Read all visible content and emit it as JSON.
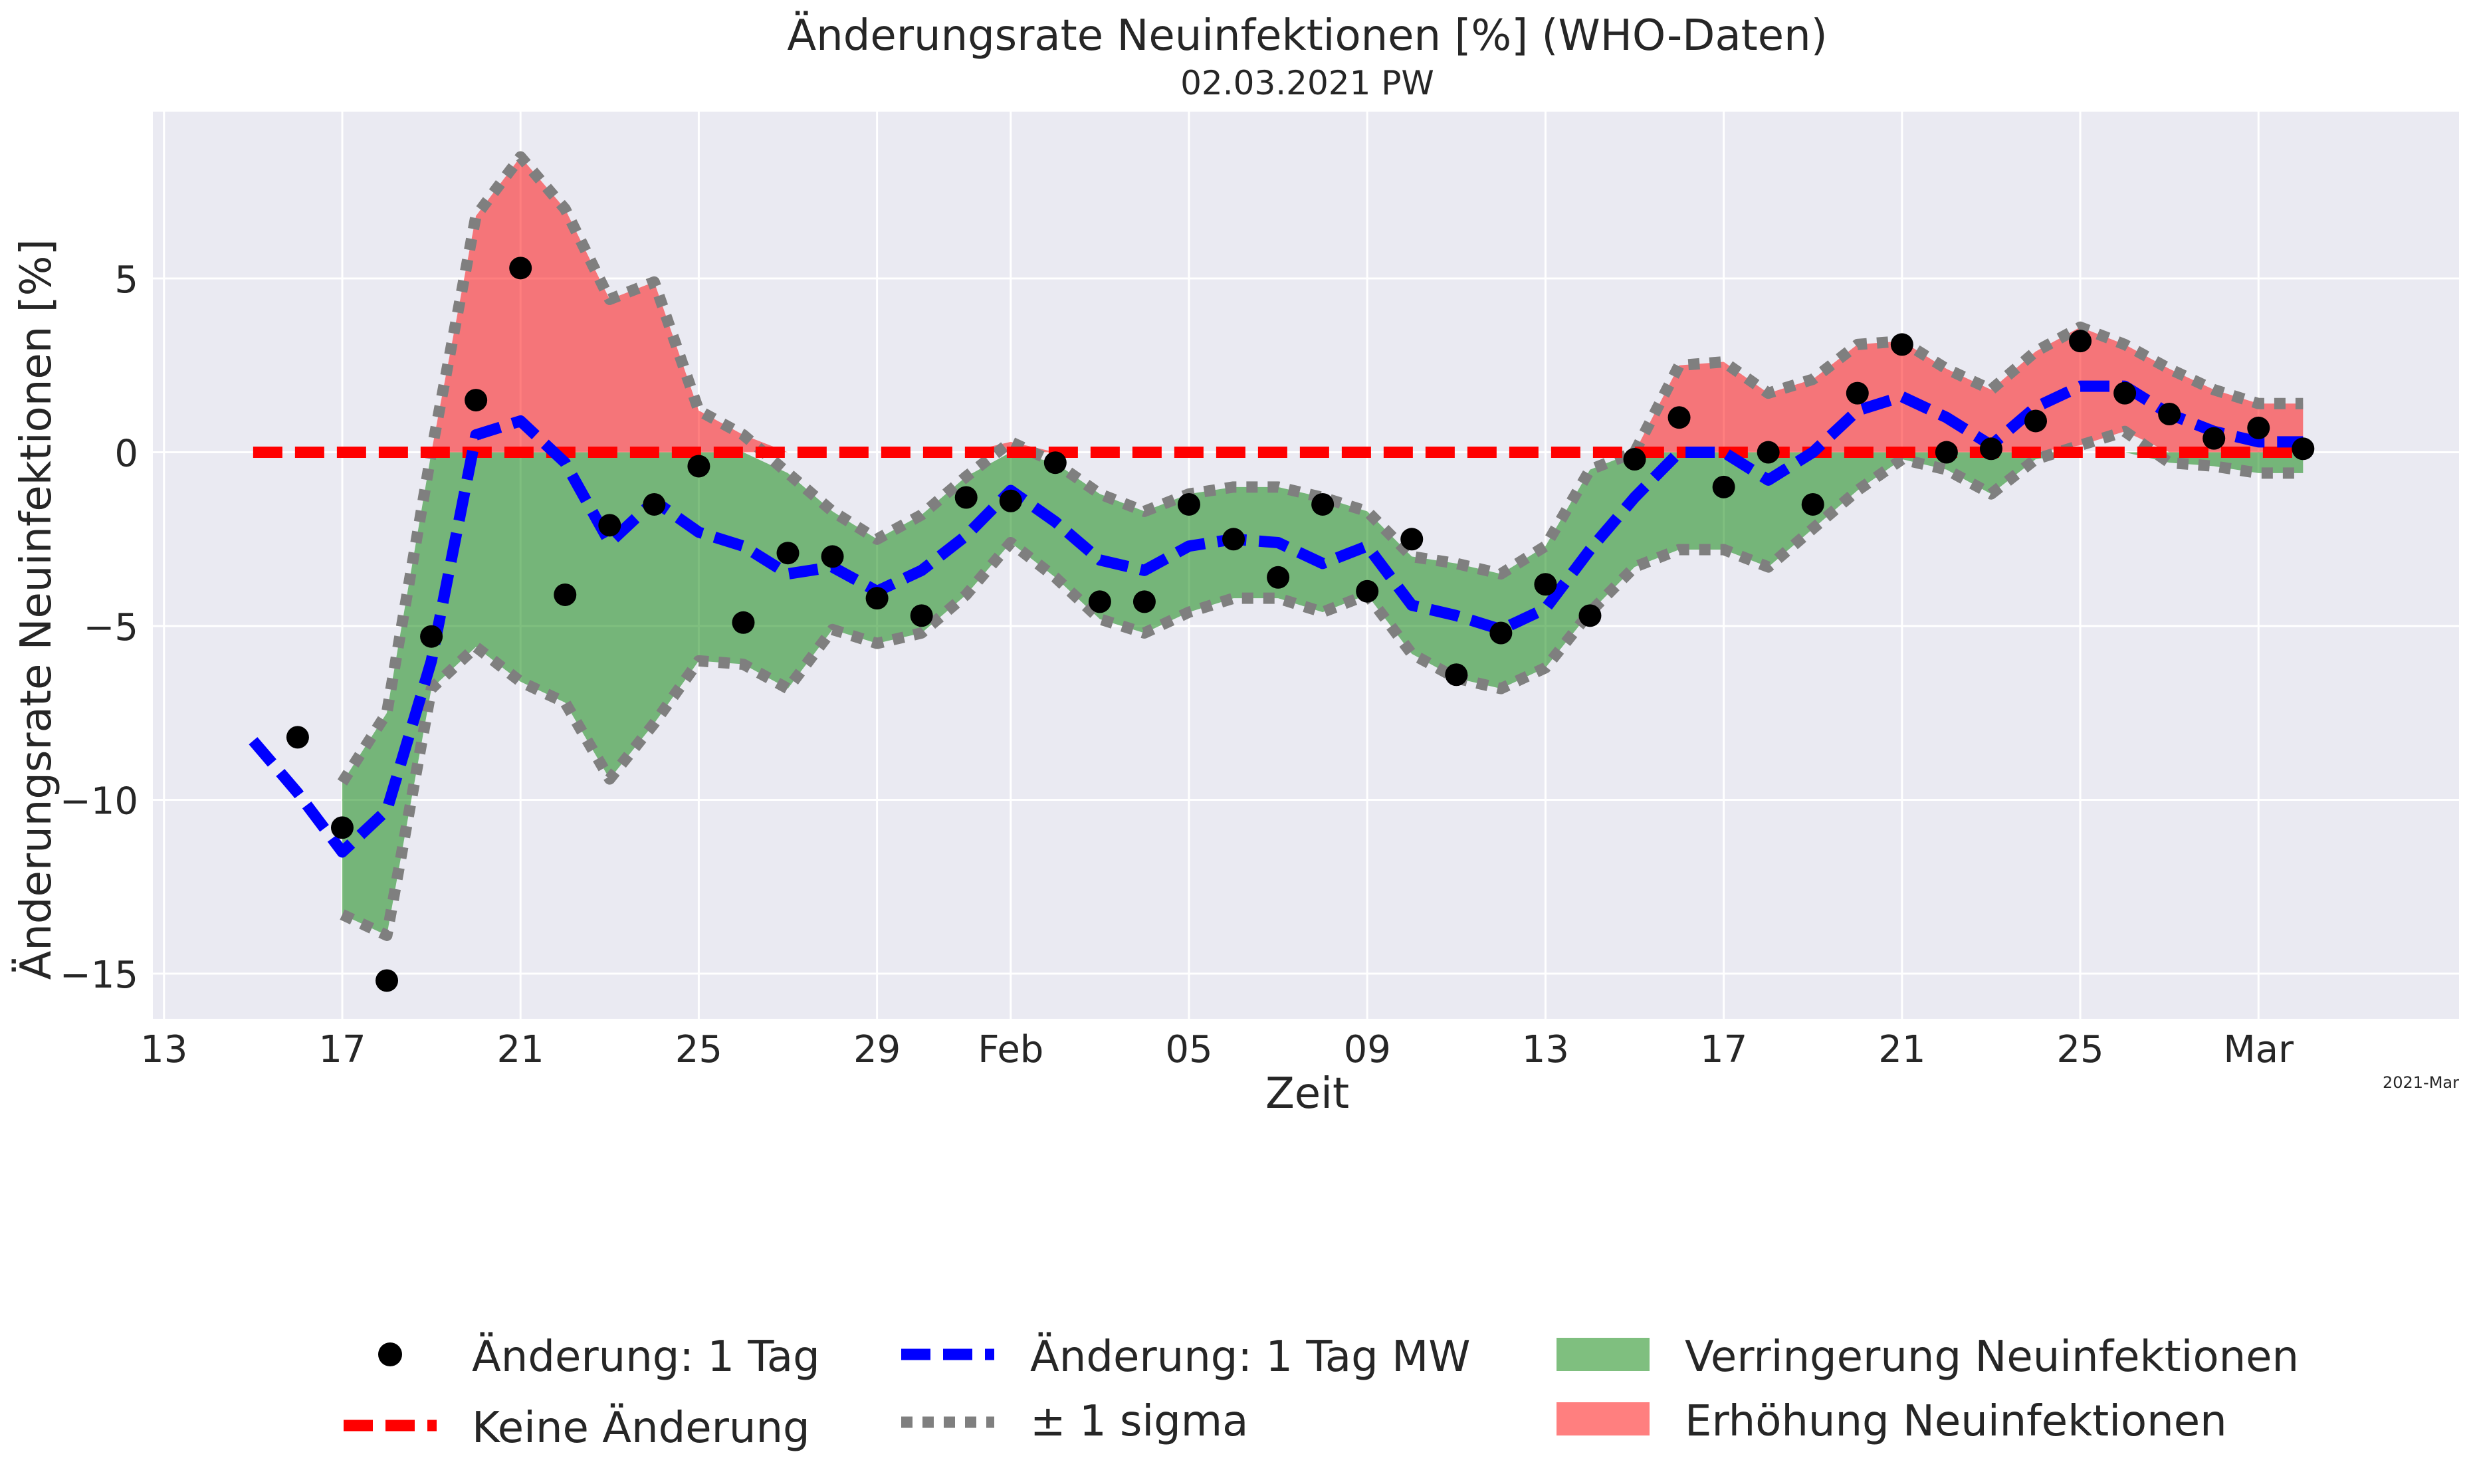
{
  "chart_data": {
    "type": "line",
    "title": "Änderungsrate Neuinfektionen [%] (WHO-Daten)",
    "subtitle": "02.03.2021 PW",
    "xlabel": "Zeit",
    "ylabel": "Änderungsrate Neuinfektionen [%]",
    "offset_text": "2021-Mar",
    "x_start": "2021-01-15",
    "xlim": [
      "2021-01-12T18:00",
      "2021-03-05T12:00"
    ],
    "ylim": [
      -16.3,
      9.8
    ],
    "y_ticks": [
      -15,
      -10,
      -5,
      0,
      5
    ],
    "y_tick_labels": [
      "−15",
      "−10",
      "−5",
      "0",
      "5"
    ],
    "x_ticks": [
      {
        "date": "2021-01-13",
        "label": "13"
      },
      {
        "date": "2021-01-17",
        "label": "17"
      },
      {
        "date": "2021-01-21",
        "label": "21"
      },
      {
        "date": "2021-01-25",
        "label": "25"
      },
      {
        "date": "2021-01-29",
        "label": "29"
      },
      {
        "date": "2021-02-01",
        "label": "Feb"
      },
      {
        "date": "2021-02-05",
        "label": "05"
      },
      {
        "date": "2021-02-09",
        "label": "09"
      },
      {
        "date": "2021-02-13",
        "label": "13"
      },
      {
        "date": "2021-02-17",
        "label": "17"
      },
      {
        "date": "2021-02-21",
        "label": "21"
      },
      {
        "date": "2021-02-25",
        "label": "25"
      },
      {
        "date": "2021-03-01",
        "label": "Mar"
      }
    ],
    "grid": true,
    "legend_position": "below",
    "colors": {
      "background": "#eaeaf2",
      "grid": "#ffffff",
      "points": "#000000",
      "mean": "#0000ff",
      "zero": "#ff0000",
      "sigma": "#7f7f7f",
      "decrease_fill": "#008000",
      "increase_fill": "#ff0000"
    },
    "series": [
      {
        "name": "Änderung: 1 Tag",
        "kind": "scatter",
        "x": [
          "2021-01-16",
          "2021-01-17",
          "2021-01-18",
          "2021-01-19",
          "2021-01-20",
          "2021-01-21",
          "2021-01-22",
          "2021-01-23",
          "2021-01-24",
          "2021-01-25",
          "2021-01-26",
          "2021-01-27",
          "2021-01-28",
          "2021-01-29",
          "2021-01-30",
          "2021-01-31",
          "2021-02-01",
          "2021-02-02",
          "2021-02-03",
          "2021-02-04",
          "2021-02-05",
          "2021-02-06",
          "2021-02-07",
          "2021-02-08",
          "2021-02-09",
          "2021-02-10",
          "2021-02-11",
          "2021-02-12",
          "2021-02-13",
          "2021-02-14",
          "2021-02-15",
          "2021-02-16",
          "2021-02-17",
          "2021-02-18",
          "2021-02-19",
          "2021-02-20",
          "2021-02-21",
          "2021-02-22",
          "2021-02-23",
          "2021-02-24",
          "2021-02-25",
          "2021-02-26",
          "2021-02-27",
          "2021-02-28",
          "2021-03-01",
          "2021-03-02"
        ],
        "y": [
          -8.2,
          -10.8,
          -15.2,
          -5.3,
          1.5,
          5.3,
          -4.1,
          -2.1,
          -1.5,
          -0.4,
          -4.9,
          -2.9,
          -3.0,
          -4.2,
          -4.7,
          -1.3,
          -1.4,
          -0.3,
          -4.3,
          -4.3,
          -1.5,
          -2.5,
          -3.6,
          -1.5,
          -4.0,
          -2.5,
          -6.4,
          -5.2,
          -3.8,
          -4.7,
          -0.2,
          1.0,
          -1.0,
          0.0,
          -1.5,
          1.7,
          3.1,
          0.0,
          0.1,
          0.9,
          3.2,
          1.7,
          1.1,
          0.4,
          0.7,
          0.1
        ]
      },
      {
        "name": "Änderung: 1 Tag MW",
        "kind": "line",
        "x": [
          "2021-01-15",
          "2021-01-16",
          "2021-01-17",
          "2021-01-18",
          "2021-01-19",
          "2021-01-20",
          "2021-01-21",
          "2021-01-22",
          "2021-01-23",
          "2021-01-24",
          "2021-01-25",
          "2021-01-26",
          "2021-01-27",
          "2021-01-28",
          "2021-01-29",
          "2021-01-30",
          "2021-01-31",
          "2021-02-01",
          "2021-02-02",
          "2021-02-03",
          "2021-02-04",
          "2021-02-05",
          "2021-02-06",
          "2021-02-07",
          "2021-02-08",
          "2021-02-09",
          "2021-02-10",
          "2021-02-11",
          "2021-02-12",
          "2021-02-13",
          "2021-02-14",
          "2021-02-15",
          "2021-02-16",
          "2021-02-17",
          "2021-02-18",
          "2021-02-19",
          "2021-02-20",
          "2021-02-21",
          "2021-02-22",
          "2021-02-23",
          "2021-02-24",
          "2021-02-25",
          "2021-02-26",
          "2021-02-27",
          "2021-02-28",
          "2021-03-01",
          "2021-03-02"
        ],
        "y": [
          -8.3,
          -9.8,
          -11.5,
          -10.3,
          -6.0,
          0.5,
          0.9,
          -0.3,
          -2.6,
          -1.4,
          -2.3,
          -2.7,
          -3.5,
          -3.3,
          -4.0,
          -3.4,
          -2.4,
          -1.1,
          -2.0,
          -3.1,
          -3.4,
          -2.7,
          -2.5,
          -2.6,
          -3.2,
          -2.7,
          -4.4,
          -4.7,
          -5.1,
          -4.5,
          -2.8,
          -1.3,
          0.0,
          0.0,
          -0.8,
          0.0,
          1.2,
          1.6,
          1.0,
          0.2,
          1.3,
          1.9,
          1.9,
          1.1,
          0.6,
          0.3,
          0.3
        ]
      },
      {
        "name": "± 1 sigma",
        "kind": "band",
        "x": [
          "2021-01-17",
          "2021-01-18",
          "2021-01-19",
          "2021-01-20",
          "2021-01-21",
          "2021-01-22",
          "2021-01-23",
          "2021-01-24",
          "2021-01-25",
          "2021-01-26",
          "2021-01-27",
          "2021-01-28",
          "2021-01-29",
          "2021-01-30",
          "2021-01-31",
          "2021-02-01",
          "2021-02-02",
          "2021-02-03",
          "2021-02-04",
          "2021-02-05",
          "2021-02-06",
          "2021-02-07",
          "2021-02-08",
          "2021-02-09",
          "2021-02-10",
          "2021-02-11",
          "2021-02-12",
          "2021-02-13",
          "2021-02-14",
          "2021-02-15",
          "2021-02-16",
          "2021-02-17",
          "2021-02-18",
          "2021-02-19",
          "2021-02-20",
          "2021-02-21",
          "2021-02-22",
          "2021-02-23",
          "2021-02-24",
          "2021-02-25",
          "2021-02-26",
          "2021-02-27",
          "2021-02-28",
          "2021-03-01",
          "2021-03-02"
        ],
        "upper": [
          -9.5,
          -7.5,
          0.0,
          6.8,
          8.5,
          7.0,
          4.4,
          4.9,
          1.2,
          0.5,
          -0.6,
          -1.7,
          -2.5,
          -1.8,
          -0.7,
          0.3,
          -0.3,
          -1.2,
          -1.7,
          -1.2,
          -1.0,
          -1.0,
          -1.3,
          -1.7,
          -3.0,
          -3.2,
          -3.5,
          -2.7,
          -0.5,
          0.0,
          2.5,
          2.6,
          1.7,
          2.1,
          3.1,
          3.2,
          2.4,
          1.8,
          2.9,
          3.6,
          3.1,
          2.4,
          1.8,
          1.4,
          1.4
        ],
        "lower": [
          -13.3,
          -13.9,
          -6.8,
          -5.6,
          -6.6,
          -7.2,
          -9.4,
          -7.8,
          -6.0,
          -6.1,
          -6.8,
          -5.1,
          -5.5,
          -5.2,
          -4.1,
          -2.6,
          -3.6,
          -4.8,
          -5.2,
          -4.6,
          -4.2,
          -4.2,
          -4.6,
          -4.1,
          -5.8,
          -6.5,
          -6.8,
          -6.2,
          -4.6,
          -3.3,
          -2.8,
          -2.8,
          -3.3,
          -2.2,
          -1.1,
          -0.2,
          -0.5,
          -1.2,
          -0.2,
          0.2,
          0.6,
          -0.3,
          -0.4,
          -0.6,
          -0.6
        ]
      },
      {
        "name": "Keine Änderung",
        "kind": "hline",
        "x": [
          "2021-01-15",
          "2021-03-02"
        ],
        "y": 0
      }
    ],
    "fills": [
      {
        "name": "Verringerung Neuinfektionen"
      },
      {
        "name": "Erhöhung Neuinfektionen"
      }
    ]
  }
}
